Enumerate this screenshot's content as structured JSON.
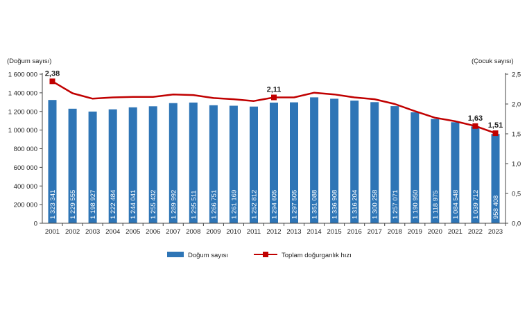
{
  "chart_data": {
    "type": "bar",
    "categories": [
      "2001",
      "2002",
      "2003",
      "2004",
      "2005",
      "2006",
      "2007",
      "2008",
      "2009",
      "2010",
      "2011",
      "2012",
      "2013",
      "2014",
      "2015",
      "2016",
      "2017",
      "2018",
      "2019",
      "2020",
      "2021",
      "2022",
      "2023"
    ],
    "series": [
      {
        "name": "Doğum sayısı",
        "type": "bar",
        "axis": "left",
        "color": "#2E75B6",
        "values": [
          1323341,
          1229555,
          1198927,
          1222484,
          1244041,
          1255432,
          1289992,
          1295511,
          1266751,
          1261169,
          1252812,
          1294605,
          1297505,
          1351088,
          1336908,
          1316204,
          1300258,
          1257071,
          1190950,
          1118975,
          1084548,
          1039712,
          958408
        ],
        "labels": [
          "1 323 341",
          "1 229 555",
          "1 198 927",
          "1 222 484",
          "1 244 041",
          "1 255 432",
          "1 289 992",
          "1 295 511",
          "1 266 751",
          "1 261 169",
          "1 252 812",
          "1 294 605",
          "1 297 505",
          "1 351 088",
          "1 336 908",
          "1 316 204",
          "1 300 258",
          "1 257 071",
          "1 190 950",
          "1 118 975",
          "1 084 548",
          "1 039 712",
          "958 408"
        ]
      },
      {
        "name": "Toplam doğurganlık hızı",
        "type": "line",
        "axis": "right",
        "color": "#C00000",
        "values": [
          2.38,
          2.18,
          2.09,
          2.11,
          2.12,
          2.12,
          2.16,
          2.15,
          2.1,
          2.08,
          2.05,
          2.11,
          2.11,
          2.19,
          2.16,
          2.11,
          2.08,
          2.0,
          1.88,
          1.77,
          1.71,
          1.63,
          1.51
        ],
        "marked_points": [
          {
            "index": 0,
            "label": "2,38"
          },
          {
            "index": 11,
            "label": "2,11"
          },
          {
            "index": 21,
            "label": "1,63"
          },
          {
            "index": 22,
            "label": "1,51"
          }
        ]
      }
    ],
    "y_left": {
      "label": "(Doğum sayısı)",
      "range": [
        0,
        1600000
      ],
      "ticks": [
        0,
        200000,
        400000,
        600000,
        800000,
        1000000,
        1200000,
        1400000,
        1600000
      ],
      "tick_labels": [
        "0",
        "200 000",
        "400 000",
        "600 000",
        "800 000",
        "1 000 000",
        "1 200 000",
        "1 400 000",
        "1 600 000"
      ]
    },
    "y_right": {
      "label": "(Çocuk sayısı)",
      "range": [
        0,
        2.5
      ],
      "ticks": [
        0,
        0.5,
        1.0,
        1.5,
        2.0,
        2.5
      ],
      "tick_labels": [
        "0,0",
        "0,5",
        "1,0",
        "1,5",
        "2,0",
        "2,5"
      ]
    },
    "grid": false,
    "legend_position": "bottom"
  }
}
